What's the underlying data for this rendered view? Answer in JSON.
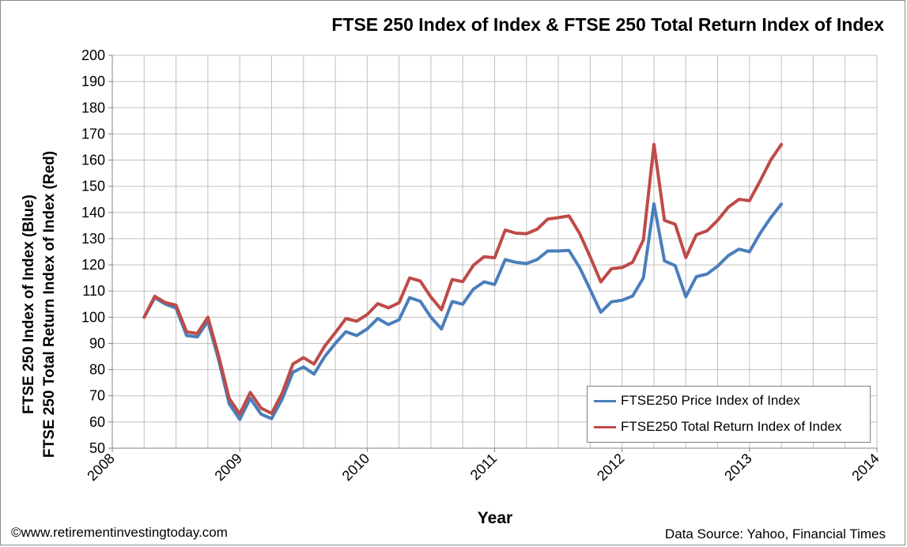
{
  "title": "FTSE 250 Index of Index & FTSE 250 Total Return Index of Index",
  "footer": {
    "credit": "©www.retirementinvestingtoday.com",
    "source": "Data Source: Yahoo, Financial Times"
  },
  "colors": {
    "price": "#4a7ebb",
    "total_return": "#be4b48",
    "grid": "#bfbfbf",
    "axis": "#868686"
  },
  "chart_data": {
    "type": "line",
    "title": "FTSE 250 Index of Index & FTSE 250 Total Return Index of Index",
    "xlabel": "Year",
    "ylabel_line1": "FTSE 250 Index of Index (Blue)",
    "ylabel_line2": "FTSE 250 Total Return Index of Index (Red)",
    "xlim": [
      2008,
      2014
    ],
    "ylim": [
      50,
      200
    ],
    "x_ticks": [
      2008,
      2009,
      2010,
      2011,
      2012,
      2013,
      2014
    ],
    "y_ticks": [
      50,
      60,
      70,
      80,
      90,
      100,
      110,
      120,
      130,
      140,
      150,
      160,
      170,
      180,
      190,
      200
    ],
    "grid": true,
    "legend_position": "bottom-right",
    "x": [
      2008.25,
      2008.333,
      2008.417,
      2008.5,
      2008.583,
      2008.667,
      2008.75,
      2008.833,
      2008.917,
      2009.0,
      2009.083,
      2009.167,
      2009.25,
      2009.333,
      2009.417,
      2009.5,
      2009.583,
      2009.667,
      2009.75,
      2009.833,
      2009.917,
      2010.0,
      2010.083,
      2010.167,
      2010.25,
      2010.333,
      2010.417,
      2010.5,
      2010.583,
      2010.667,
      2010.75,
      2010.833,
      2010.917,
      2011.0,
      2011.083,
      2011.167,
      2011.25,
      2011.333,
      2011.417,
      2011.5,
      2011.583,
      2011.667,
      2011.75,
      2011.833,
      2011.917,
      2012.0,
      2012.083,
      2012.167,
      2012.25,
      2012.333,
      2012.417,
      2012.5,
      2012.583,
      2012.667,
      2012.75,
      2012.833,
      2012.917,
      2013.0,
      2013.083,
      2013.167,
      2013.25
    ],
    "series": [
      {
        "name": "FTSE250 Price Index of Index",
        "color": "#4a7ebb",
        "values": [
          100,
          107.5,
          105,
          103.5,
          93,
          92.5,
          98.5,
          84,
          67,
          61,
          69,
          63,
          61.3,
          68.7,
          79,
          81,
          78.3,
          85,
          90,
          94.5,
          93,
          95.5,
          99.5,
          97.2,
          99,
          107.5,
          106.1,
          100,
          95.5,
          106,
          105,
          110.7,
          113.5,
          112.5,
          122,
          121,
          120.5,
          122,
          125.3,
          125.3,
          125.5,
          119,
          110.5,
          101.9,
          105.9,
          106.5,
          108.1,
          115,
          143.3,
          121.5,
          119.7,
          107.8,
          115.5,
          116.5,
          119.5,
          123.5,
          126,
          125,
          132,
          138,
          143.2
        ]
      },
      {
        "name": "FTSE250 Total Return  Index of Index",
        "color": "#be4b48",
        "values": [
          100,
          108,
          105.6,
          104.6,
          94.4,
          93.8,
          100,
          85.5,
          69,
          63,
          71.3,
          65.3,
          63.3,
          71,
          82.1,
          84.6,
          82.1,
          89,
          94.1,
          99.5,
          98.5,
          101,
          105.2,
          103.6,
          105.5,
          115,
          113.8,
          107.7,
          102.9,
          114.4,
          113.6,
          119.8,
          123.1,
          122.7,
          133.3,
          132.1,
          131.9,
          133.6,
          137.5,
          138,
          138.7,
          132,
          123,
          113.5,
          118.5,
          119,
          121,
          129.5,
          166,
          137,
          135.5,
          122.8,
          131.5,
          133,
          137,
          142,
          145,
          144.5,
          152,
          160,
          166
        ]
      }
    ]
  }
}
